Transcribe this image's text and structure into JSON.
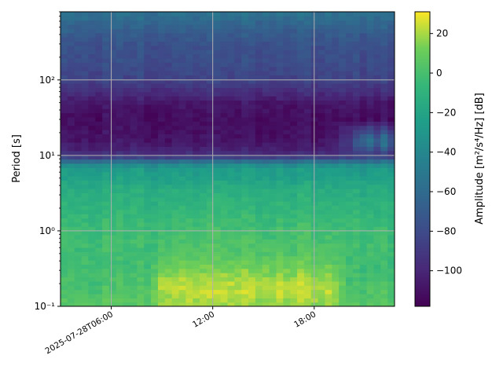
{
  "chart_data": {
    "type": "heatmap",
    "title": "",
    "xlabel": "",
    "ylabel": "Period [s]",
    "x_axis": {
      "type": "time",
      "range": [
        "2025-07-28T03:00:00",
        "2025-07-28T22:45:00"
      ],
      "ticks": [
        {
          "value": "2025-07-28T06:00:00",
          "label": "2025-07-28T06:00"
        },
        {
          "value": "2025-07-28T12:00:00",
          "label": "12:00"
        },
        {
          "value": "2025-07-28T18:00:00",
          "label": "18:00"
        }
      ]
    },
    "y_axis": {
      "scale": "log",
      "range": [
        0.1,
        800
      ],
      "ticks": [
        {
          "value": 0.1,
          "label": "10⁻¹"
        },
        {
          "value": 1,
          "label": "10⁰"
        },
        {
          "value": 10,
          "label": "10¹"
        },
        {
          "value": 100,
          "label": "10²"
        }
      ]
    },
    "grid": true,
    "colormap": "viridis",
    "colorbar": {
      "label": "Amplitude [m²/s⁴/Hz] [dB]",
      "range": [
        -118,
        31
      ],
      "ticks": [
        {
          "value": 20,
          "label": "20"
        },
        {
          "value": 0,
          "label": "0"
        },
        {
          "value": -20,
          "label": "−20"
        },
        {
          "value": -40,
          "label": "−40"
        },
        {
          "value": -60,
          "label": "−60"
        },
        {
          "value": -80,
          "label": "−80"
        },
        {
          "value": -100,
          "label": "−100"
        }
      ]
    },
    "amplitude_profile_db": {
      "period_s": [
        0.1,
        0.15,
        0.2,
        0.3,
        0.5,
        1,
        2,
        3,
        4,
        5,
        7,
        8,
        9,
        10,
        12,
        15,
        20,
        30,
        50,
        70,
        100,
        150,
        200,
        300,
        500,
        800
      ],
      "baseline": [
        5,
        2,
        0,
        -2,
        -3,
        -3,
        -10,
        -13,
        -17,
        -22,
        -28,
        -45,
        -75,
        -92,
        -102,
        -108,
        -110,
        -112,
        -108,
        -96,
        -85,
        -80,
        -78,
        -76,
        -66,
        -55
      ],
      "daytime": [
        18,
        22,
        22,
        14,
        4,
        -1,
        -8,
        -12,
        -16,
        -22,
        -28,
        -45,
        -75,
        -92,
        -102,
        -108,
        -110,
        -112,
        -108,
        -96,
        -85,
        -80,
        -78,
        -76,
        -66,
        -55
      ],
      "daytime_window": [
        "2025-07-28T09:00:00",
        "2025-07-28T19:00:00"
      ],
      "late_evening_long_period_db": -55,
      "late_evening_window": [
        "2025-07-28T19:00:00",
        "2025-07-28T22:45:00"
      ]
    }
  }
}
